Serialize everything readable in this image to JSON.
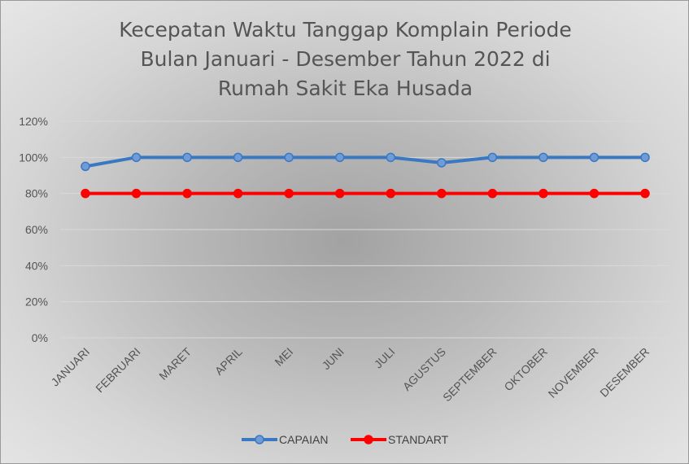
{
  "chart_data": {
    "type": "line",
    "title_lines": [
      "Kecepatan Waktu Tanggap Komplain Periode",
      "Bulan Januari - Desember Tahun 2022 di",
      "Rumah Sakit Eka Husada"
    ],
    "categories": [
      "JANUARI",
      "FEBRUARI",
      "MARET",
      "APRIL",
      "MEI",
      "JUNI",
      "JULI",
      "AGUSTUS",
      "SEPTEMBER",
      "OKTOBER",
      "NOVEMBER",
      "DESEMBER"
    ],
    "series": [
      {
        "name": "CAPAIAN",
        "values": [
          95,
          100,
          100,
          100,
          100,
          100,
          100,
          97,
          100,
          100,
          100,
          100
        ],
        "color": "#3b78c2",
        "marker_color": "#6f9bd6"
      },
      {
        "name": "STANDART",
        "values": [
          80,
          80,
          80,
          80,
          80,
          80,
          80,
          80,
          80,
          80,
          80,
          80
        ],
        "color": "#ff0000",
        "marker_color": "#ff0000"
      }
    ],
    "ylim": [
      0,
      120
    ],
    "yticks": [
      0,
      20,
      40,
      60,
      80,
      100,
      120
    ],
    "ytick_labels": [
      "0%",
      "20%",
      "40%",
      "60%",
      "80%",
      "100%",
      "120%"
    ],
    "grid": true,
    "legend_position": "bottom"
  }
}
